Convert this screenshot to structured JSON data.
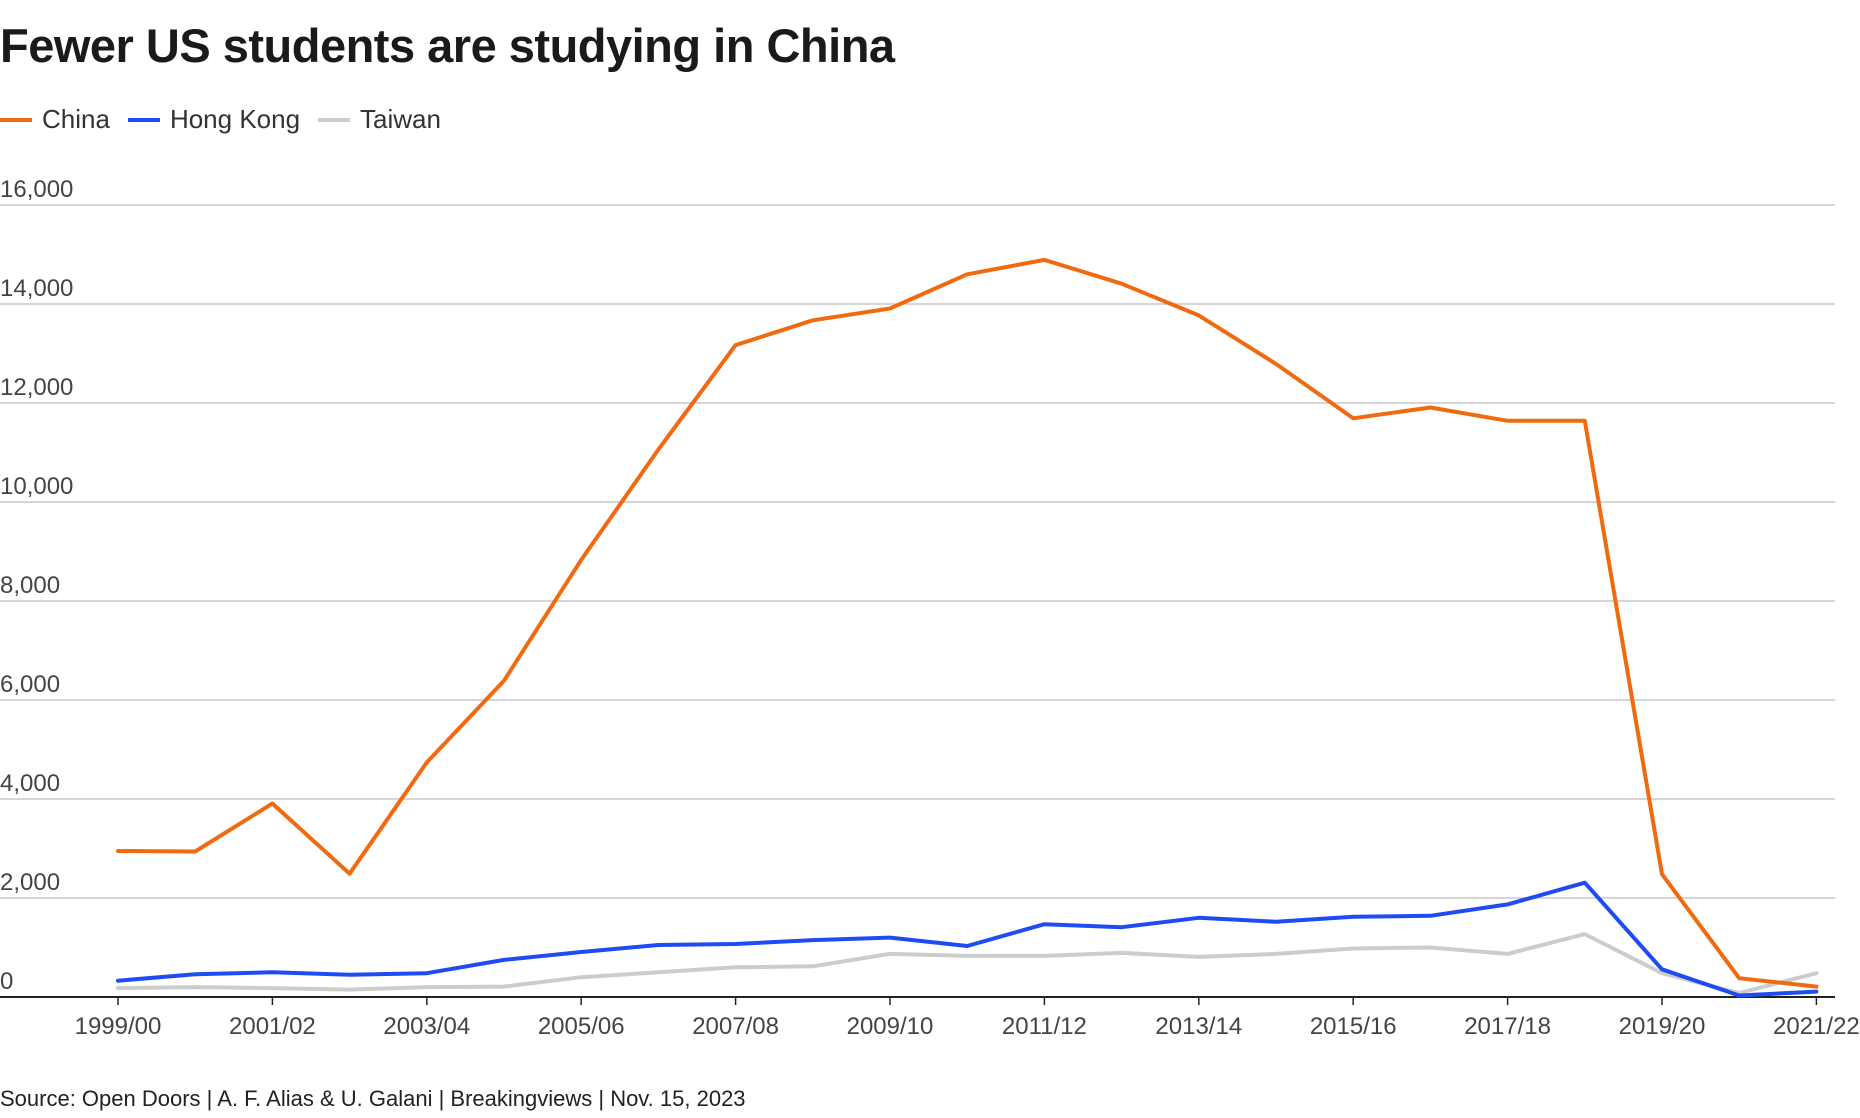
{
  "title": "Fewer US students are studying in China",
  "source": "Source: Open Doors | A. F. Alias & U. Galani | Breakingviews | Nov. 15, 2023",
  "chart_data": {
    "type": "line",
    "title": "Fewer US students are studying in China",
    "xlabel": "",
    "ylabel": "",
    "ylim": [
      0,
      16000
    ],
    "yticks": [
      0,
      2000,
      4000,
      6000,
      8000,
      10000,
      12000,
      14000,
      16000
    ],
    "ytick_labels": [
      "0",
      "2,000",
      "4,000",
      "6,000",
      "8,000",
      "10,000",
      "12,000",
      "14,000",
      "16,000"
    ],
    "categories": [
      "1999/00",
      "2000/01",
      "2001/02",
      "2002/03",
      "2003/04",
      "2004/05",
      "2005/06",
      "2006/07",
      "2007/08",
      "2008/09",
      "2009/10",
      "2010/11",
      "2011/12",
      "2012/13",
      "2013/14",
      "2014/15",
      "2015/16",
      "2016/17",
      "2017/18",
      "2018/19",
      "2019/20",
      "2020/21",
      "2021/22"
    ],
    "xtick_labels": [
      "1999/00",
      "2001/02",
      "2003/04",
      "2005/06",
      "2007/08",
      "2009/10",
      "2011/12",
      "2013/14",
      "2015/16",
      "2017/18",
      "2019/20",
      "2021/22"
    ],
    "grid": true,
    "legend_position": "top-left",
    "series": [
      {
        "name": "China",
        "color": "#f26a10",
        "values": [
          2950,
          2940,
          3910,
          2490,
          4740,
          6390,
          8830,
          11060,
          13170,
          13670,
          13910,
          14600,
          14890,
          14410,
          13770,
          12790,
          11690,
          11910,
          11640,
          11640,
          2480,
          380,
          210
        ]
      },
      {
        "name": "Hong Kong",
        "color": "#1f4cf2",
        "values": [
          330,
          460,
          500,
          450,
          480,
          750,
          910,
          1050,
          1070,
          1150,
          1200,
          1030,
          1470,
          1410,
          1600,
          1520,
          1620,
          1640,
          1870,
          2310,
          560,
          30,
          110
        ]
      },
      {
        "name": "Taiwan",
        "color": "#cccccc",
        "values": [
          180,
          200,
          180,
          150,
          200,
          210,
          400,
          500,
          600,
          620,
          870,
          830,
          830,
          890,
          810,
          870,
          980,
          1000,
          870,
          1270,
          480,
          80,
          480
        ]
      }
    ]
  }
}
